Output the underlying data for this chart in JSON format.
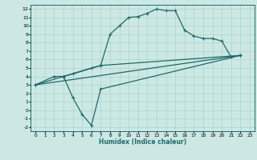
{
  "xlabel": "Humidex (Indice chaleur)",
  "xlim": [
    -0.5,
    23.5
  ],
  "ylim": [
    -2.5,
    12.5
  ],
  "xticks": [
    0,
    1,
    2,
    3,
    4,
    5,
    6,
    7,
    8,
    9,
    10,
    11,
    12,
    13,
    14,
    15,
    16,
    17,
    18,
    19,
    20,
    21,
    22,
    23
  ],
  "yticks": [
    -2,
    -1,
    0,
    1,
    2,
    3,
    4,
    5,
    6,
    7,
    8,
    9,
    10,
    11,
    12
  ],
  "bg_color": "#cde8e4",
  "grid_color": "#a8d4cc",
  "line_color": "#1a6b6b",
  "curve1_x": [
    0,
    2,
    3,
    4,
    7,
    8,
    9,
    10,
    11,
    12,
    13,
    14,
    15,
    16,
    17,
    18,
    19,
    20,
    21,
    22
  ],
  "curve1_y": [
    3,
    4,
    4,
    4.3,
    5.3,
    9,
    10,
    11,
    11.1,
    11.5,
    12,
    11.8,
    11.8,
    9.5,
    8.8,
    8.5,
    8.5,
    8.2,
    6.3,
    6.5
  ],
  "curve2_x": [
    0,
    3,
    6,
    7,
    22
  ],
  "curve2_y": [
    3,
    4,
    5.0,
    5.3,
    6.5
  ],
  "curve3_x": [
    0,
    22
  ],
  "curve3_y": [
    3,
    6.5
  ],
  "curve4_x": [
    3,
    4,
    5,
    6,
    7,
    22
  ],
  "curve4_y": [
    4,
    1.5,
    -0.5,
    -1.8,
    2.5,
    6.5
  ]
}
